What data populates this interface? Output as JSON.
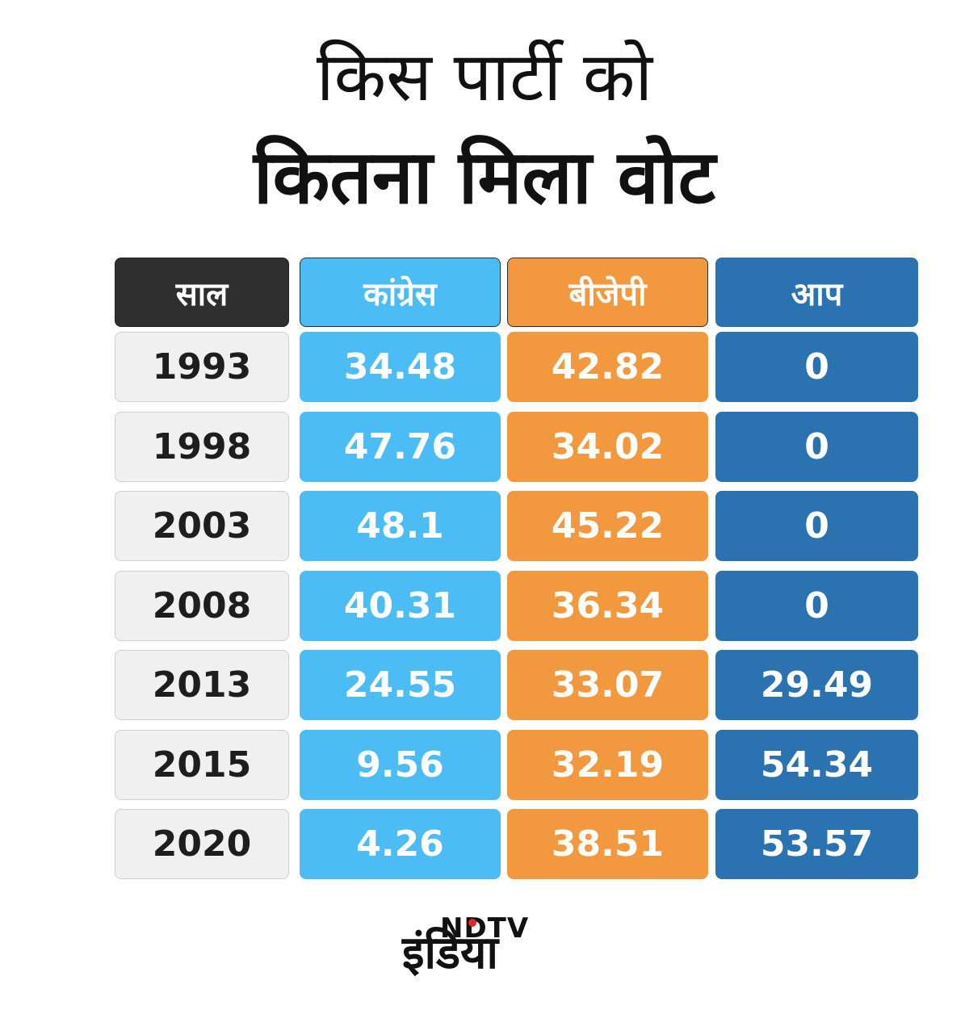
{
  "title": {
    "line1": "किस पार्टी को",
    "line2": "कितना मिला वोट"
  },
  "colors": {
    "year_header": "#2f2f2f",
    "congress": "#4cbcf5",
    "bjp": "#f2993f",
    "aap": "#2a72b0",
    "year_cell": "#f0f0f0"
  },
  "chart_data": {
    "type": "table",
    "columns": [
      "साल",
      "कांग्रेस",
      "बीजेपी",
      "आप"
    ],
    "rows": [
      [
        "1993",
        "34.48",
        "42.82",
        "0"
      ],
      [
        "1998",
        "47.76",
        "34.02",
        "0"
      ],
      [
        "2003",
        "48.1",
        "45.22",
        "0"
      ],
      [
        "2008",
        "40.31",
        "36.34",
        "0"
      ],
      [
        "2013",
        "24.55",
        "33.07",
        "29.49"
      ],
      [
        "2015",
        "9.56",
        "32.19",
        "54.34"
      ],
      [
        "2020",
        "4.26",
        "38.51",
        "53.57"
      ]
    ]
  },
  "logo": {
    "ndtv": "NDTV",
    "hindi": "इंडिया"
  }
}
